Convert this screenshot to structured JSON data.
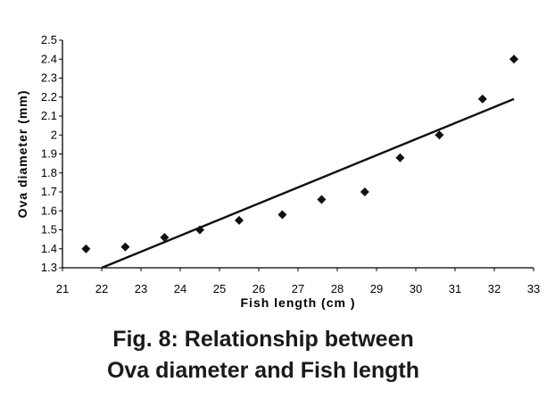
{
  "caption": {
    "line1": "Fig. 8: Relationship between",
    "line2": "Ova diameter and Fish length"
  },
  "chart_data": {
    "type": "scatter",
    "title": "",
    "xlabel": "Fish length (cm )",
    "ylabel": "Ova diameter (mm)",
    "xlim": [
      21,
      33
    ],
    "ylim": [
      1.3,
      2.5
    ],
    "xticks": [
      21,
      22,
      23,
      24,
      25,
      26,
      27,
      28,
      29,
      30,
      31,
      32,
      33
    ],
    "yticks": [
      1.3,
      1.4,
      1.5,
      1.6,
      1.7,
      1.8,
      1.9,
      2,
      2.1,
      2.2,
      2.3,
      2.4,
      2.5
    ],
    "grid": false,
    "points": [
      {
        "x": 21.6,
        "y": 1.4
      },
      {
        "x": 22.6,
        "y": 1.41
      },
      {
        "x": 23.6,
        "y": 1.46
      },
      {
        "x": 24.5,
        "y": 1.5
      },
      {
        "x": 25.5,
        "y": 1.55
      },
      {
        "x": 26.6,
        "y": 1.58
      },
      {
        "x": 27.6,
        "y": 1.66
      },
      {
        "x": 28.7,
        "y": 1.7
      },
      {
        "x": 29.6,
        "y": 1.88
      },
      {
        "x": 30.6,
        "y": 2.0
      },
      {
        "x": 31.7,
        "y": 2.19
      },
      {
        "x": 32.5,
        "y": 2.4
      }
    ],
    "trendline": {
      "x": [
        22.0,
        32.5
      ],
      "y": [
        1.3,
        2.19
      ]
    },
    "marker_color": "#111111",
    "line_color": "#111111"
  }
}
